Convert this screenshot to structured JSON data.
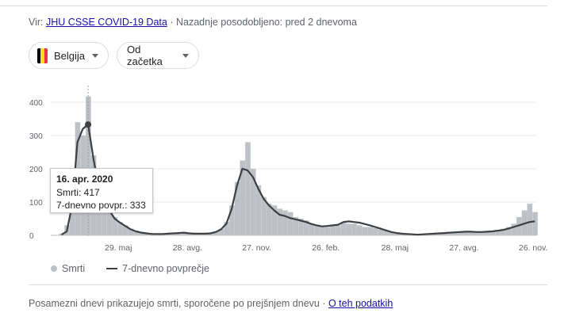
{
  "source": {
    "prefix": "Vir:",
    "link_text": "JHU CSSE COVID-19 Data",
    "separator": "·",
    "updated": "Nazadnje posodobljeno: pred 2 dnevoma"
  },
  "filters": {
    "country": "Belgija",
    "country_flag_colors": [
      "#000000",
      "#FDDA24",
      "#EF3340"
    ],
    "range": "Od začetka"
  },
  "tooltip": {
    "date": "16. apr. 2020",
    "deaths_line": "Smrti: 417",
    "avg_line": "7-dnevno povpr.: 333"
  },
  "legend": {
    "bars": "Smrti",
    "line": "7-dnevno povprečje"
  },
  "footer": {
    "note": "Posamezni dnevi prikazujejo smrti, sporočene po prejšnjem dnevu",
    "link": "O teh podatkih"
  },
  "colors": {
    "bars": "#bdc1c6",
    "line": "#3c4043",
    "grid": "#e8eaed",
    "text": "#5f6368",
    "link": "#1a0dab"
  },
  "chart_data": {
    "type": "bar",
    "series_names": [
      "Smrti",
      "7-dnevno povprečje"
    ],
    "ylim": [
      0,
      450
    ],
    "y_ticks": [
      0,
      100,
      200,
      300,
      400
    ],
    "x_tick_labels": [
      "29. maj",
      "28. avg.",
      "27. nov.",
      "26. feb.",
      "28. maj",
      "27. avg.",
      "26. nov."
    ],
    "grid": true,
    "highlight": {
      "date": "16. apr. 2020",
      "deaths": 417,
      "avg": 333
    },
    "weekly": {
      "week_start": [
        "2020-03-12",
        "2020-03-19",
        "2020-03-26",
        "2020-04-02",
        "2020-04-09",
        "2020-04-16",
        "2020-04-23",
        "2020-04-30",
        "2020-05-07",
        "2020-05-14",
        "2020-05-21",
        "2020-05-28",
        "2020-06-04",
        "2020-06-11",
        "2020-06-18",
        "2020-06-25",
        "2020-07-02",
        "2020-07-09",
        "2020-07-16",
        "2020-07-23",
        "2020-07-30",
        "2020-08-06",
        "2020-08-13",
        "2020-08-20",
        "2020-08-27",
        "2020-09-03",
        "2020-09-10",
        "2020-09-17",
        "2020-09-24",
        "2020-10-01",
        "2020-10-08",
        "2020-10-15",
        "2020-10-22",
        "2020-10-29",
        "2020-11-05",
        "2020-11-12",
        "2020-11-19",
        "2020-11-26",
        "2020-12-03",
        "2020-12-10",
        "2020-12-17",
        "2020-12-24",
        "2020-12-31",
        "2021-01-07",
        "2021-01-14",
        "2021-01-21",
        "2021-01-28",
        "2021-02-04",
        "2021-02-11",
        "2021-02-18",
        "2021-02-25",
        "2021-03-04",
        "2021-03-11",
        "2021-03-18",
        "2021-03-25",
        "2021-04-01",
        "2021-04-08",
        "2021-04-15",
        "2021-04-22",
        "2021-04-29",
        "2021-05-06",
        "2021-05-13",
        "2021-05-20",
        "2021-05-27",
        "2021-06-03",
        "2021-06-10",
        "2021-06-17",
        "2021-06-24",
        "2021-07-01",
        "2021-07-08",
        "2021-07-15",
        "2021-07-22",
        "2021-07-29",
        "2021-08-05",
        "2021-08-12",
        "2021-08-19",
        "2021-08-26",
        "2021-09-02",
        "2021-09-09",
        "2021-09-16",
        "2021-09-23",
        "2021-09-30",
        "2021-10-07",
        "2021-10-14",
        "2021-10-21",
        "2021-10-28",
        "2021-11-04",
        "2021-11-11",
        "2021-11-18",
        "2021-11-25"
      ],
      "deaths": [
        5,
        30,
        200,
        340,
        300,
        417,
        240,
        150,
        110,
        80,
        55,
        40,
        30,
        20,
        14,
        10,
        7,
        5,
        5,
        5,
        5,
        6,
        8,
        9,
        7,
        5,
        5,
        5,
        7,
        12,
        20,
        40,
        90,
        160,
        225,
        280,
        200,
        150,
        115,
        95,
        90,
        80,
        75,
        70,
        55,
        50,
        45,
        35,
        30,
        25,
        25,
        28,
        30,
        40,
        35,
        35,
        30,
        25,
        25,
        22,
        18,
        15,
        10,
        8,
        5,
        4,
        3,
        2,
        3,
        4,
        5,
        6,
        7,
        8,
        9,
        10,
        12,
        10,
        9,
        10,
        12,
        14,
        15,
        20,
        25,
        35,
        55,
        75,
        95,
        70
      ],
      "avg_7day": [
        2,
        12,
        90,
        280,
        320,
        333,
        230,
        145,
        100,
        75,
        50,
        38,
        28,
        18,
        12,
        8,
        6,
        4,
        4,
        4,
        5,
        6,
        7,
        8,
        6,
        5,
        5,
        5,
        6,
        10,
        18,
        35,
        80,
        150,
        200,
        195,
        175,
        140,
        110,
        90,
        75,
        62,
        58,
        52,
        48,
        44,
        40,
        34,
        30,
        27,
        28,
        30,
        32,
        40,
        42,
        40,
        38,
        34,
        30,
        25,
        20,
        15,
        10,
        7,
        5,
        4,
        3,
        2,
        3,
        4,
        5,
        6,
        7,
        8,
        9,
        10,
        11,
        11,
        10,
        10,
        11,
        12,
        14,
        16,
        20,
        25,
        30,
        35,
        40,
        42
      ]
    }
  }
}
